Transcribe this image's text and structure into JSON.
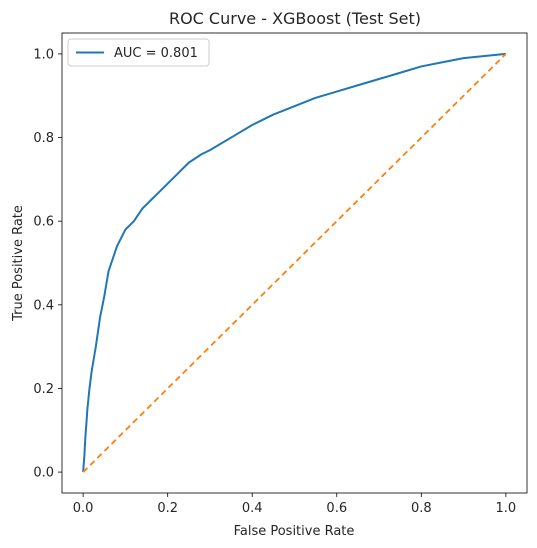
{
  "chart_data": {
    "type": "line",
    "title": "ROC Curve - XGBoost (Test Set)",
    "xlabel": "False Positive Rate",
    "ylabel": "True Positive Rate",
    "xlim": [
      0,
      1
    ],
    "ylim": [
      0,
      1
    ],
    "xticks": [
      0.0,
      0.2,
      0.4,
      0.6,
      0.8,
      1.0
    ],
    "yticks": [
      0.0,
      0.2,
      0.4,
      0.6,
      0.8,
      1.0
    ],
    "xtick_labels": [
      "0.0",
      "0.2",
      "0.4",
      "0.6",
      "0.8",
      "1.0"
    ],
    "ytick_labels": [
      "0.0",
      "0.2",
      "0.4",
      "0.6",
      "0.8",
      "1.0"
    ],
    "grid": false,
    "legend_position": "top-left",
    "series": [
      {
        "name": "AUC = 0.801",
        "color": "#1f77b4",
        "style": "solid",
        "x": [
          0,
          0.003,
          0.005,
          0.008,
          0.01,
          0.015,
          0.02,
          0.03,
          0.04,
          0.05,
          0.06,
          0.07,
          0.08,
          0.09,
          0.1,
          0.12,
          0.14,
          0.16,
          0.18,
          0.2,
          0.22,
          0.25,
          0.28,
          0.3,
          0.35,
          0.4,
          0.45,
          0.5,
          0.55,
          0.6,
          0.65,
          0.7,
          0.75,
          0.8,
          0.85,
          0.9,
          0.95,
          1.0
        ],
        "y": [
          0,
          0.04,
          0.08,
          0.12,
          0.15,
          0.2,
          0.24,
          0.3,
          0.37,
          0.42,
          0.48,
          0.51,
          0.54,
          0.56,
          0.58,
          0.6,
          0.63,
          0.65,
          0.67,
          0.69,
          0.71,
          0.74,
          0.76,
          0.77,
          0.8,
          0.83,
          0.855,
          0.875,
          0.895,
          0.91,
          0.925,
          0.94,
          0.955,
          0.97,
          0.98,
          0.99,
          0.995,
          1.0
        ]
      },
      {
        "name": "",
        "color": "#ff7f0e",
        "style": "dashed",
        "x": [
          0,
          1
        ],
        "y": [
          0,
          1
        ]
      }
    ]
  }
}
